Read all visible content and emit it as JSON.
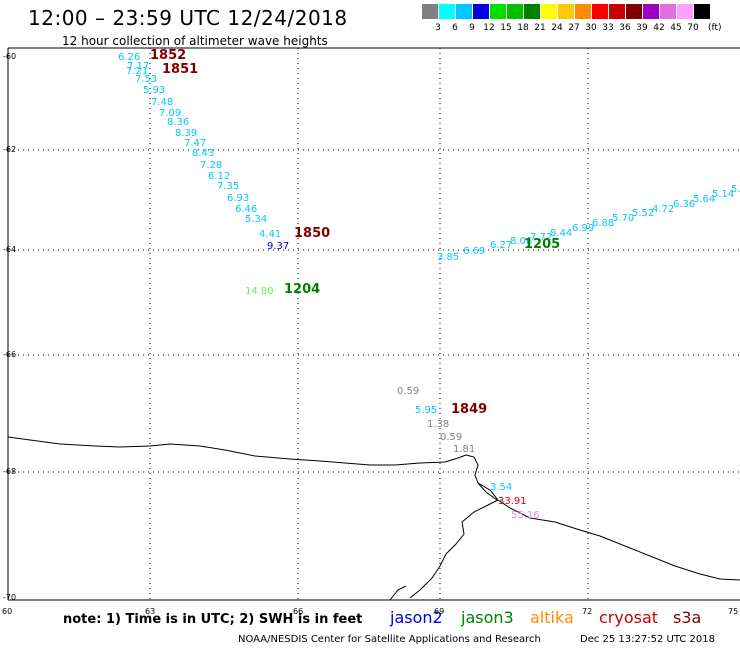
{
  "header": {
    "title": "12:00 – 23:59 UTC 12/24/2018",
    "subtitle": "12 hour collection of altimeter wave heights"
  },
  "legend": {
    "unit": "(ft)",
    "bins": [
      {
        "label": "3",
        "color": "#808080"
      },
      {
        "label": "6",
        "color": "#00ffff"
      },
      {
        "label": "9",
        "color": "#00c8ff"
      },
      {
        "label": "12",
        "color": "#0000e0"
      },
      {
        "label": "15",
        "color": "#00e000"
      },
      {
        "label": "18",
        "color": "#00c000"
      },
      {
        "label": "21",
        "color": "#008000"
      },
      {
        "label": "24",
        "color": "#ffff00"
      },
      {
        "label": "27",
        "color": "#ffc800"
      },
      {
        "label": "30",
        "color": "#ff8c00"
      },
      {
        "label": "33",
        "color": "#ff0000"
      },
      {
        "label": "36",
        "color": "#c80000"
      },
      {
        "label": "39",
        "color": "#800000"
      },
      {
        "label": "42",
        "color": "#a000c0"
      },
      {
        "label": "45",
        "color": "#e070e0"
      },
      {
        "label": "70",
        "color": "#ffa0ff"
      },
      {
        "label": "",
        "color": "#000000"
      }
    ]
  },
  "axes": {
    "lat_labels": [
      "-60",
      "-62",
      "-64",
      "-66",
      "-68",
      "-70"
    ],
    "lon_labels": [
      "60",
      "63",
      "66",
      "69",
      "72",
      "75"
    ]
  },
  "measurements": [
    {
      "text": "6.26",
      "color": "#00c8ff"
    },
    {
      "text": "7.17",
      "color": "#00c8ff"
    },
    {
      "text": "7.21",
      "color": "#00c8ff"
    },
    {
      "text": "7.53",
      "color": "#00c8ff"
    },
    {
      "text": "5.93",
      "color": "#00c8ff"
    },
    {
      "text": "7.48",
      "color": "#00c8ff"
    },
    {
      "text": "7.09",
      "color": "#00c8ff"
    },
    {
      "text": "8.36",
      "color": "#00c8ff"
    },
    {
      "text": "8.39",
      "color": "#00c8ff"
    },
    {
      "text": "7.47",
      "color": "#00c8ff"
    },
    {
      "text": "8.43",
      "color": "#00c8ff"
    },
    {
      "text": "7.28",
      "color": "#00c8ff"
    },
    {
      "text": "6.12",
      "color": "#00c8ff"
    },
    {
      "text": "7.35",
      "color": "#00c8ff"
    },
    {
      "text": "6.93",
      "color": "#00c8ff"
    },
    {
      "text": "6.46",
      "color": "#00c8ff"
    },
    {
      "text": "5.34",
      "color": "#00c8ff"
    },
    {
      "text": "4.41",
      "color": "#00c8ff"
    },
    {
      "text": "9.37",
      "color": "#0000e0"
    },
    {
      "text": "14.80",
      "color": "#66ee66"
    },
    {
      "text": "3.85",
      "color": "#00c8ff"
    },
    {
      "text": "6.69",
      "color": "#00c8ff"
    },
    {
      "text": "6.27",
      "color": "#00c8ff"
    },
    {
      "text": "8.06",
      "color": "#00c8ff"
    },
    {
      "text": "7.72",
      "color": "#00c8ff"
    },
    {
      "text": "8.44",
      "color": "#00c8ff"
    },
    {
      "text": "6.99",
      "color": "#00c8ff"
    },
    {
      "text": "6.88",
      "color": "#00c8ff"
    },
    {
      "text": "5.70",
      "color": "#00c8ff"
    },
    {
      "text": "5.52",
      "color": "#00c8ff"
    },
    {
      "text": "4.72",
      "color": "#00c8ff"
    },
    {
      "text": "6.36",
      "color": "#00c8ff"
    },
    {
      "text": "5.64",
      "color": "#00c8ff"
    },
    {
      "text": "5.14",
      "color": "#00c8ff"
    },
    {
      "text": "5.",
      "color": "#00c8ff"
    },
    {
      "text": "0.59",
      "color": "#808080"
    },
    {
      "text": "5.95",
      "color": "#00c8ff"
    },
    {
      "text": "1.38",
      "color": "#808080"
    },
    {
      "text": "0.59",
      "color": "#808080"
    },
    {
      "text": "1.81",
      "color": "#808080"
    },
    {
      "text": "3.54",
      "color": "#00c8ff"
    },
    {
      "text": "33.91",
      "color": "#c80000"
    },
    {
      "text": "55.16",
      "color": "#ee88ee"
    }
  ],
  "passes": [
    {
      "text": "1852",
      "color": "#800000"
    },
    {
      "text": "1851",
      "color": "#800000"
    },
    {
      "text": "1850",
      "color": "#800000"
    },
    {
      "text": "1204",
      "color": "#008000"
    },
    {
      "text": "1205",
      "color": "#008000"
    },
    {
      "text": "1849",
      "color": "#800000"
    }
  ],
  "footer": {
    "note": "note: 1) Time is in UTC; 2) SWH is in feet",
    "satellites": [
      {
        "name": "jason2",
        "color": "#0000e0"
      },
      {
        "name": "jason3",
        "color": "#008000"
      },
      {
        "name": "altika",
        "color": "#ff8c00"
      },
      {
        "name": "cryosat",
        "color": "#c80000"
      },
      {
        "name": "s3a",
        "color": "#800000"
      }
    ],
    "credit": "NOAA/NESDIS Center for Satellite Applications and Research",
    "timestamp": "Dec 25 13:27:52 UTC 2018"
  }
}
